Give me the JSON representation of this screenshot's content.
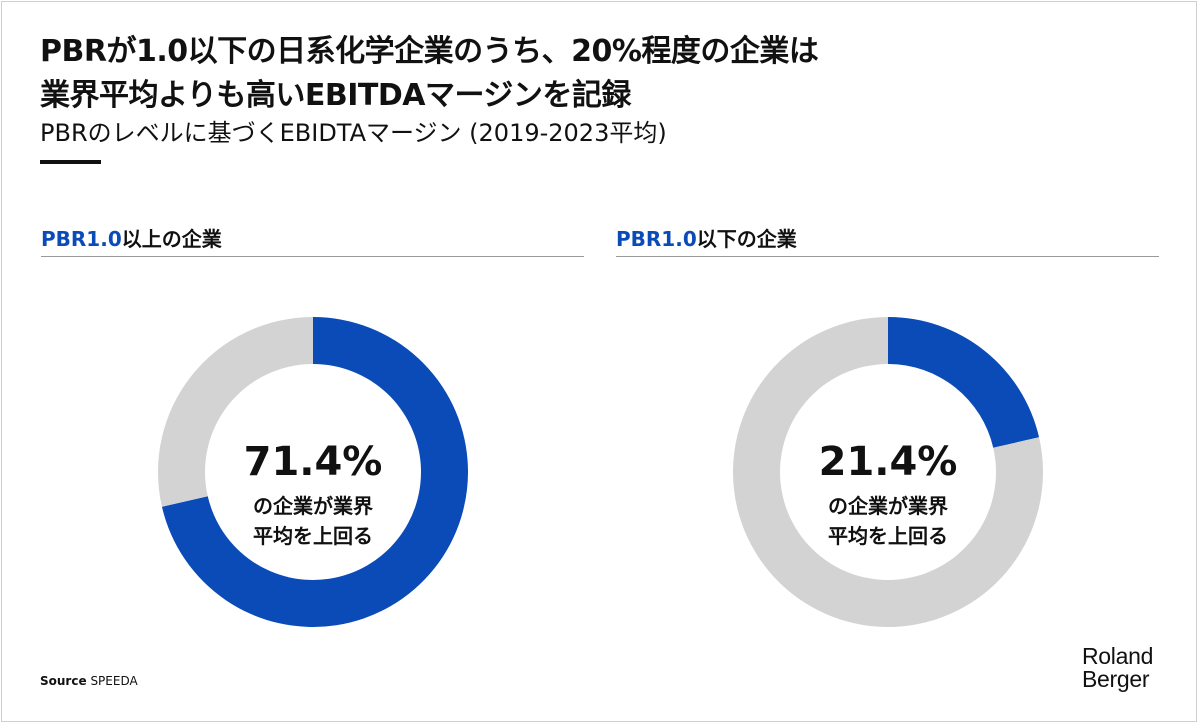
{
  "title_line1": "PBRが1.0以下の日系化学企業のうち、20%程度の企業は",
  "title_line2": "業界平均よりも高いEBITDAマージンを記録",
  "subtitle": "PBRのレベルに基づくEBIDTAマージン (2019-2023平均)",
  "source_label": "Source",
  "source_name": "SPEEDA",
  "logo_line1": "Roland",
  "logo_line2": "Berger",
  "colors": {
    "highlight": "#0a4bb8",
    "remainder": "#d3d3d3"
  },
  "chart_data": [
    {
      "type": "pie",
      "title_accent": "PBR1.0",
      "title_rest": "以上の企業",
      "percent_label": "71.4%",
      "center_line1": "の企業が業界",
      "center_line2": "平均を上回る",
      "values": [
        71.4,
        28.6
      ]
    },
    {
      "type": "pie",
      "title_accent": "PBR1.0",
      "title_rest": "以下の企業",
      "percent_label": "21.4%",
      "center_line1": "の企業が業界",
      "center_line2": "平均を上回る",
      "values": [
        21.4,
        78.6
      ]
    }
  ]
}
